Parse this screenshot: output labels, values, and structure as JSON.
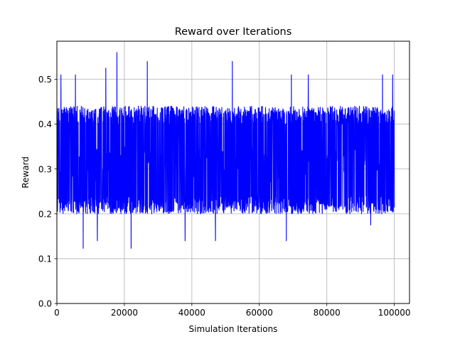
{
  "chart_data": {
    "type": "line",
    "title": "Reward over Iterations",
    "xlabel": "Simulation Iterations",
    "ylabel": "Reward",
    "xlim": [
      0,
      104500
    ],
    "ylim": [
      0,
      0.585
    ],
    "x_ticks": [
      0,
      20000,
      40000,
      60000,
      80000,
      100000
    ],
    "x_tick_labels": [
      "0",
      "20000",
      "40000",
      "60000",
      "80000",
      "100000"
    ],
    "y_ticks": [
      0.0,
      0.1,
      0.2,
      0.3,
      0.4,
      0.5
    ],
    "y_tick_labels": [
      "0.0",
      "0.1",
      "0.2",
      "0.3",
      "0.4",
      "0.5"
    ],
    "grid": true,
    "series": [
      {
        "color": "#0000ff",
        "x_range": [
          0,
          100000
        ],
        "typical_band": [
          0.2,
          0.44
        ],
        "mean": 0.31,
        "peaks": [
          {
            "x": 1200,
            "y": 0.51
          },
          {
            "x": 5500,
            "y": 0.51
          },
          {
            "x": 14500,
            "y": 0.525
          },
          {
            "x": 17800,
            "y": 0.56
          },
          {
            "x": 26800,
            "y": 0.54
          },
          {
            "x": 52000,
            "y": 0.54
          },
          {
            "x": 69500,
            "y": 0.51
          },
          {
            "x": 74500,
            "y": 0.51
          },
          {
            "x": 96500,
            "y": 0.51
          },
          {
            "x": 99500,
            "y": 0.51
          }
        ],
        "troughs": [
          {
            "x": 7800,
            "y": 0.123
          },
          {
            "x": 22000,
            "y": 0.123
          },
          {
            "x": 12000,
            "y": 0.14
          },
          {
            "x": 38000,
            "y": 0.14
          },
          {
            "x": 47000,
            "y": 0.14
          },
          {
            "x": 68000,
            "y": 0.14
          },
          {
            "x": 93000,
            "y": 0.175
          }
        ]
      }
    ]
  }
}
